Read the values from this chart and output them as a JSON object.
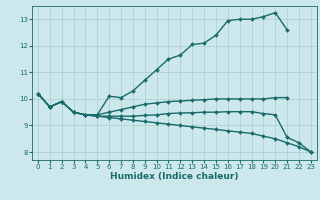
{
  "xlabel": "Humidex (Indice chaleur)",
  "xlim": [
    -0.5,
    23.5
  ],
  "ylim": [
    7.7,
    13.5
  ],
  "yticks": [
    8,
    9,
    10,
    11,
    12,
    13
  ],
  "xticks": [
    0,
    1,
    2,
    3,
    4,
    5,
    6,
    7,
    8,
    9,
    10,
    11,
    12,
    13,
    14,
    15,
    16,
    17,
    18,
    19,
    20,
    21,
    22,
    23
  ],
  "bg_color": "#cce8ec",
  "grid_color": "#aacccc",
  "line_color": "#1a6b6b",
  "line_width": 1.0,
  "marker": "D",
  "marker_size": 2.0,
  "curves": [
    {
      "x": [
        0,
        1,
        2,
        3,
        4,
        5,
        6,
        7,
        8,
        9,
        10,
        11,
        12,
        13,
        14,
        15,
        16,
        17,
        18,
        19,
        20,
        21
      ],
      "y": [
        10.2,
        9.7,
        9.9,
        9.5,
        9.4,
        9.4,
        10.1,
        10.05,
        10.3,
        10.7,
        11.1,
        11.5,
        11.65,
        12.05,
        12.1,
        12.4,
        12.95,
        13.0,
        13.0,
        13.1,
        13.25,
        12.6
      ]
    },
    {
      "x": [
        0,
        1,
        2,
        3,
        4,
        5,
        6,
        7,
        8,
        9,
        10,
        11,
        12,
        13,
        14,
        15,
        16,
        17,
        18,
        19,
        20,
        21
      ],
      "y": [
        10.2,
        9.7,
        9.9,
        9.5,
        9.4,
        9.4,
        9.5,
        9.6,
        9.7,
        9.8,
        9.85,
        9.9,
        9.92,
        9.95,
        9.97,
        10.0,
        10.0,
        10.0,
        10.0,
        10.0,
        10.05,
        10.05
      ]
    },
    {
      "x": [
        0,
        1,
        2,
        3,
        4,
        5,
        6,
        7,
        8,
        9,
        10,
        11,
        12,
        13,
        14,
        15,
        16,
        17,
        18,
        19,
        20,
        21,
        22,
        23
      ],
      "y": [
        10.2,
        9.7,
        9.9,
        9.5,
        9.4,
        9.35,
        9.35,
        9.35,
        9.35,
        9.38,
        9.4,
        9.45,
        9.47,
        9.48,
        9.5,
        9.5,
        9.52,
        9.52,
        9.52,
        9.45,
        9.4,
        8.55,
        8.35,
        8.0
      ]
    },
    {
      "x": [
        0,
        1,
        2,
        3,
        4,
        5,
        6,
        7,
        8,
        9,
        10,
        11,
        12,
        13,
        14,
        15,
        16,
        17,
        18,
        19,
        20,
        21,
        22,
        23
      ],
      "y": [
        10.2,
        9.7,
        9.9,
        9.5,
        9.4,
        9.35,
        9.3,
        9.25,
        9.2,
        9.15,
        9.1,
        9.05,
        9.0,
        8.95,
        8.9,
        8.85,
        8.8,
        8.75,
        8.7,
        8.6,
        8.5,
        8.35,
        8.2,
        8.0
      ]
    }
  ]
}
